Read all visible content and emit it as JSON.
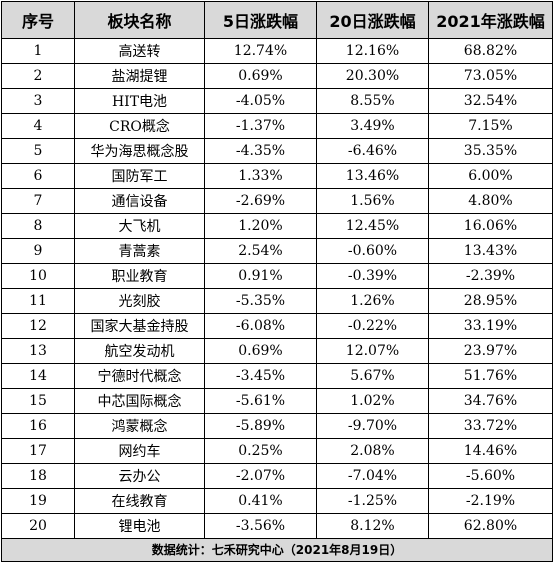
{
  "table": {
    "headers": [
      "序号",
      "板块名称",
      "5日涨跌幅",
      "20日涨跌幅",
      "2021年涨跌幅"
    ],
    "rows": [
      [
        "1",
        "高送转",
        "12.74%",
        "12.16%",
        "68.82%"
      ],
      [
        "2",
        "盐湖提锂",
        "0.69%",
        "20.30%",
        "73.05%"
      ],
      [
        "3",
        "HIT电池",
        "-4.05%",
        "8.55%",
        "32.54%"
      ],
      [
        "4",
        "CRO概念",
        "-1.37%",
        "3.49%",
        "7.15%"
      ],
      [
        "5",
        "华为海思概念股",
        "-4.35%",
        "-6.46%",
        "35.35%"
      ],
      [
        "6",
        "国防军工",
        "1.33%",
        "13.46%",
        "6.00%"
      ],
      [
        "7",
        "通信设备",
        "-2.69%",
        "1.56%",
        "4.80%"
      ],
      [
        "8",
        "大飞机",
        "1.20%",
        "12.45%",
        "16.06%"
      ],
      [
        "9",
        "青蒿素",
        "2.54%",
        "-0.60%",
        "13.43%"
      ],
      [
        "10",
        "职业教育",
        "0.91%",
        "-0.39%",
        "-2.39%"
      ],
      [
        "11",
        "光刻胶",
        "-5.35%",
        "1.26%",
        "28.95%"
      ],
      [
        "12",
        "国家大基金持股",
        "-6.08%",
        "-0.22%",
        "33.19%"
      ],
      [
        "13",
        "航空发动机",
        "0.69%",
        "12.07%",
        "23.97%"
      ],
      [
        "14",
        "宁德时代概念",
        "-3.45%",
        "5.67%",
        "51.76%"
      ],
      [
        "15",
        "中芯国际概念",
        "-5.61%",
        "1.02%",
        "34.76%"
      ],
      [
        "16",
        "鸿蒙概念",
        "-5.89%",
        "-9.70%",
        "33.72%"
      ],
      [
        "17",
        "网约车",
        "0.25%",
        "2.08%",
        "14.46%"
      ],
      [
        "18",
        "云办公",
        "-2.07%",
        "-7.04%",
        "-5.60%"
      ],
      [
        "19",
        "在线教育",
        "0.41%",
        "-1.25%",
        "-2.19%"
      ],
      [
        "20",
        "锂电池",
        "-3.56%",
        "8.12%",
        "62.80%"
      ]
    ],
    "footer": "数据统计：七禾研究中心（2021年8月19日）"
  }
}
